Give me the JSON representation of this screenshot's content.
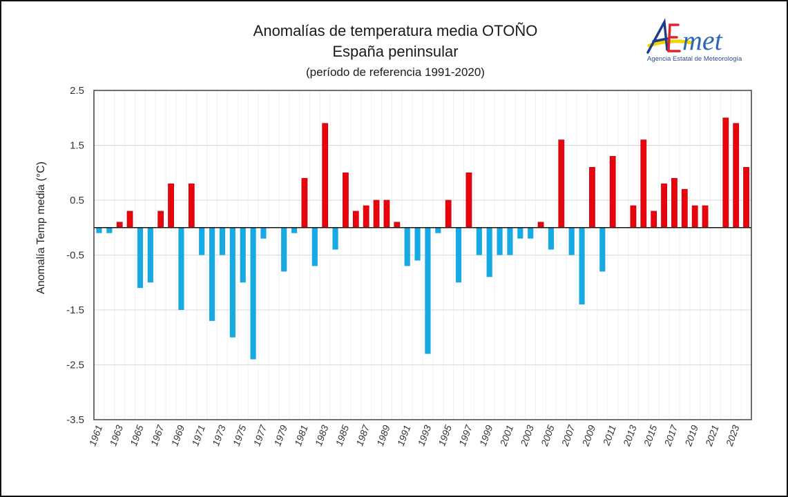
{
  "header": {
    "title": "Anomalías de temperatura media OTOÑO",
    "subtitle": "España peninsular",
    "note": "(período de referencia 1991-2020)"
  },
  "logo": {
    "wordmark": "AEmet",
    "tagline": "Agencia Estatal de Meteorología"
  },
  "colors": {
    "positive": "#E8040C",
    "negative": "#17A9E1",
    "gridline": "#D9D9D9",
    "vgridline": "#F0F0F0",
    "axis": "#333333"
  },
  "chart_data": {
    "type": "bar",
    "title": "Anomalías de temperatura media OTOÑO — España peninsular (período de referencia 1991-2020)",
    "xlabel": "",
    "ylabel": "Anomalía Temp media (°C)",
    "ylim": [
      -3.5,
      2.5
    ],
    "yticks": [
      2.5,
      1.5,
      0.5,
      -0.5,
      -1.5,
      -2.5,
      -3.5
    ],
    "ytick_labels": [
      "2.5",
      "1.5",
      "0.5",
      "-0.5",
      "-1.5",
      "-2.5",
      "-3.5"
    ],
    "grid": true,
    "legend": "none",
    "color_rule": "positive values red, negative values blue",
    "categories": [
      1961,
      1962,
      1963,
      1964,
      1965,
      1966,
      1967,
      1968,
      1969,
      1970,
      1971,
      1972,
      1973,
      1974,
      1975,
      1976,
      1977,
      1978,
      1979,
      1980,
      1981,
      1982,
      1983,
      1984,
      1985,
      1986,
      1987,
      1988,
      1989,
      1990,
      1991,
      1992,
      1993,
      1994,
      1995,
      1996,
      1997,
      1998,
      1999,
      2000,
      2001,
      2002,
      2003,
      2004,
      2005,
      2006,
      2007,
      2008,
      2009,
      2010,
      2011,
      2012,
      2013,
      2014,
      2015,
      2016,
      2017,
      2018,
      2019,
      2020,
      2021,
      2022,
      2023,
      2024
    ],
    "xtick_labels": [
      "1961",
      "1963",
      "1965",
      "1967",
      "1969",
      "1971",
      "1973",
      "1975",
      "1977",
      "1979",
      "1981",
      "1983",
      "1985",
      "1987",
      "1989",
      "1991",
      "1993",
      "1995",
      "1997",
      "1999",
      "2001",
      "2003",
      "2005",
      "2007",
      "2009",
      "2011",
      "2013",
      "2015",
      "2017",
      "2019",
      "2021",
      "2023"
    ],
    "values": [
      -0.1,
      -0.1,
      0.1,
      0.3,
      -1.1,
      -1.0,
      0.3,
      0.8,
      -1.5,
      0.8,
      -0.5,
      -1.7,
      -0.5,
      -2.0,
      -1.0,
      -2.4,
      -0.2,
      0.0,
      -0.8,
      -0.1,
      0.9,
      -0.7,
      1.9,
      -0.4,
      1.0,
      0.3,
      0.4,
      0.5,
      0.5,
      0.1,
      -0.7,
      -0.6,
      -2.3,
      -0.1,
      0.5,
      -1.0,
      1.0,
      -0.5,
      -0.9,
      -0.5,
      -0.5,
      -0.2,
      -0.2,
      0.1,
      -0.4,
      1.6,
      -0.5,
      -1.4,
      1.1,
      -0.8,
      1.3,
      0.0,
      0.4,
      1.6,
      0.3,
      0.8,
      0.9,
      0.7,
      0.4,
      0.4,
      0.0,
      2.0,
      1.9,
      1.1
    ]
  }
}
